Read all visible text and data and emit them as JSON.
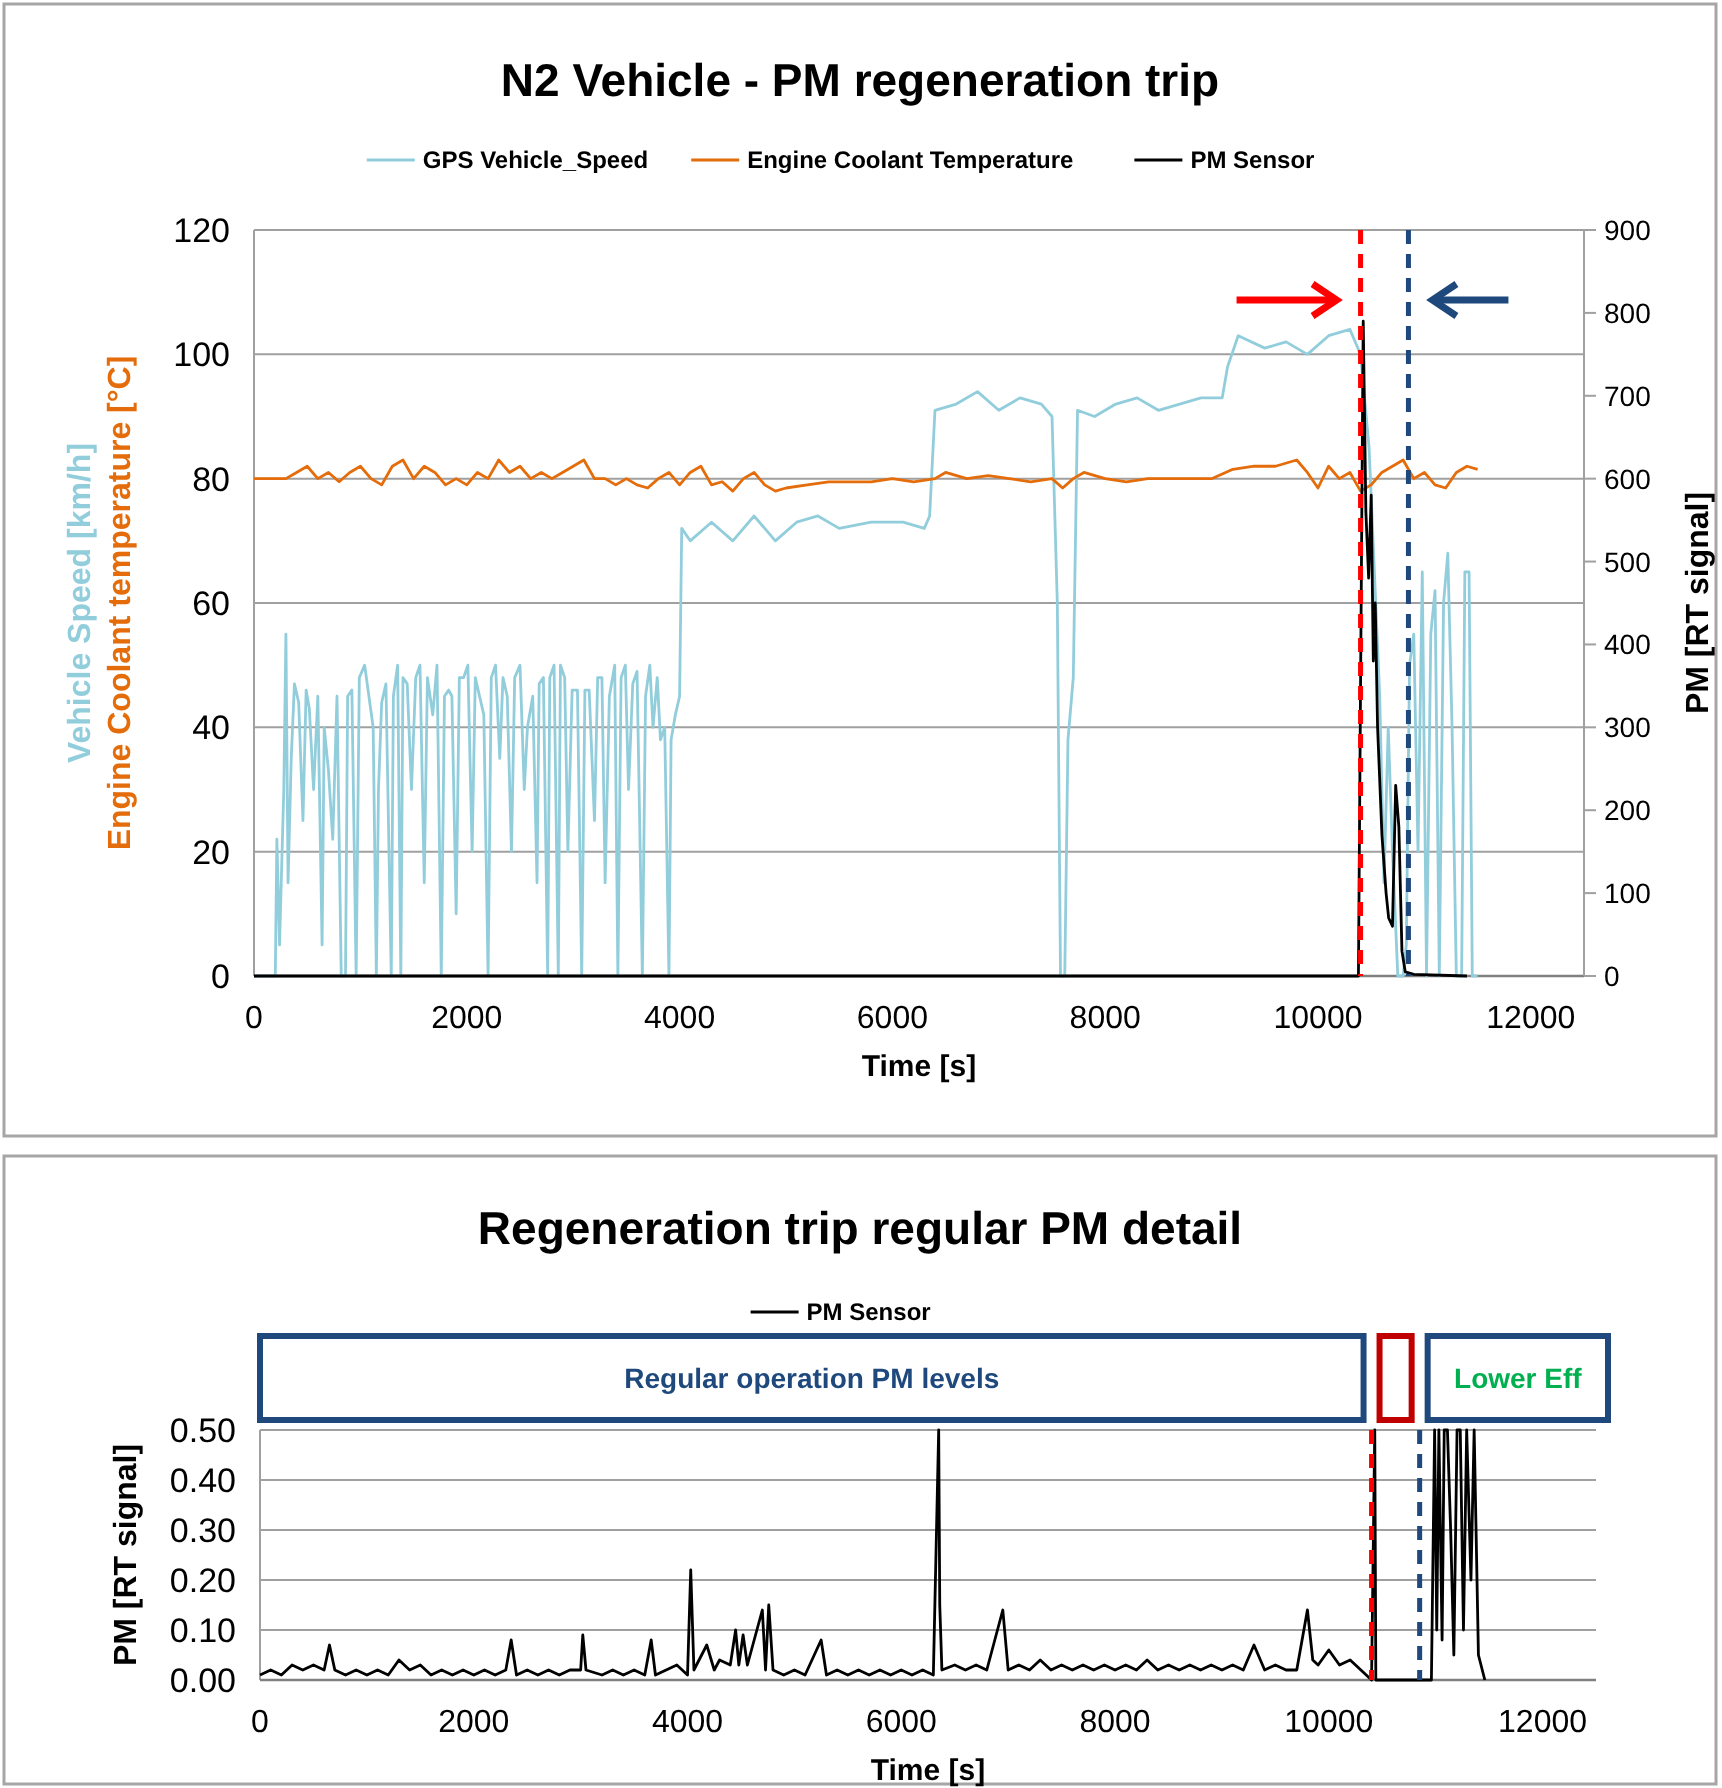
{
  "chart_data": [
    {
      "type": "line",
      "title": "N2 Vehicle - PM regeneration trip",
      "xlabel": "Time [s]",
      "ylabel": "Vehicle Speed [km/h]\nEngine Coolant temperature [°C]",
      "y2label": "PM [RT signal]",
      "xlim": [
        0,
        12500
      ],
      "xticks": [
        0,
        2000,
        4000,
        6000,
        8000,
        10000,
        12000
      ],
      "ylim": [
        0,
        120
      ],
      "yticks": [
        0,
        20,
        40,
        60,
        80,
        100,
        120
      ],
      "y2lim": [
        0,
        900
      ],
      "y2ticks": [
        0,
        100,
        200,
        300,
        400,
        500,
        600,
        700,
        800,
        900
      ],
      "grid": "y",
      "legend": "top",
      "series": [
        {
          "name": "GPS Vehicle_Speed",
          "color": "#92cddc",
          "x": [
            0,
            200,
            215,
            240,
            280,
            300,
            320,
            350,
            380,
            420,
            460,
            490,
            520,
            560,
            600,
            640,
            660,
            700,
            740,
            780,
            820,
            860,
            880,
            920,
            960,
            990,
            1040,
            1080,
            1120,
            1150,
            1170,
            1200,
            1240,
            1290,
            1310,
            1350,
            1380,
            1400,
            1440,
            1480,
            1520,
            1560,
            1600,
            1630,
            1680,
            1720,
            1760,
            1790,
            1830,
            1860,
            1900,
            1930,
            1970,
            2010,
            2050,
            2080,
            2120,
            2160,
            2200,
            2230,
            2270,
            2310,
            2340,
            2380,
            2420,
            2450,
            2500,
            2540,
            2570,
            2620,
            2660,
            2680,
            2720,
            2760,
            2780,
            2820,
            2860,
            2880,
            2920,
            2950,
            2990,
            3040,
            3080,
            3110,
            3150,
            3200,
            3230,
            3270,
            3300,
            3340,
            3390,
            3420,
            3450,
            3490,
            3520,
            3560,
            3600,
            3650,
            3680,
            3720,
            3750,
            3790,
            3820,
            3860,
            3900,
            3920,
            3960,
            4000,
            4020,
            4100,
            4300,
            4500,
            4700,
            4900,
            5100,
            5300,
            5500,
            5800,
            6100,
            6300,
            6350,
            6400,
            6600,
            6800,
            7000,
            7200,
            7400,
            7500,
            7550,
            7580,
            7620,
            7650,
            7700,
            7740,
            7900,
            8100,
            8300,
            8500,
            8700,
            8900,
            9100,
            9150,
            9250,
            9500,
            9700,
            9900,
            10100,
            10300,
            10400,
            10480,
            10530,
            10580,
            10620,
            10660,
            10700,
            10750,
            10800,
            10830,
            10860,
            10900,
            10940,
            10980,
            11020,
            11060,
            11100,
            11140,
            11180,
            11220,
            11260,
            11300,
            11350,
            11380,
            11420,
            11450,
            11500
          ],
          "values": [
            0,
            0,
            22,
            5,
            30,
            55,
            15,
            35,
            47,
            44,
            25,
            46,
            43,
            30,
            45,
            5,
            40,
            33,
            22,
            45,
            0,
            0,
            45,
            46,
            0,
            48,
            50,
            45,
            40,
            0,
            30,
            44,
            47,
            0,
            45,
            50,
            0,
            48,
            47,
            30,
            48,
            50,
            15,
            48,
            42,
            50,
            0,
            45,
            46,
            45,
            10,
            48,
            48,
            50,
            20,
            48,
            45,
            42,
            0,
            48,
            50,
            35,
            48,
            45,
            20,
            48,
            50,
            30,
            40,
            45,
            15,
            47,
            48,
            0,
            48,
            50,
            0,
            50,
            48,
            20,
            46,
            46,
            0,
            46,
            46,
            25,
            48,
            48,
            15,
            45,
            50,
            0,
            48,
            50,
            30,
            47,
            49,
            0,
            45,
            50,
            40,
            48,
            38,
            40,
            0,
            38,
            42,
            45,
            72,
            70,
            73,
            70,
            74,
            70,
            73,
            74,
            72,
            73,
            73,
            72,
            74,
            91,
            92,
            94,
            91,
            93,
            92,
            90,
            60,
            0,
            0,
            38,
            48,
            91,
            90,
            92,
            93,
            91,
            92,
            93,
            93,
            98,
            103,
            101,
            102,
            100,
            103,
            104,
            100,
            85,
            65,
            45,
            15,
            40,
            20,
            0,
            0,
            5,
            50,
            55,
            20,
            65,
            0,
            55,
            62,
            0,
            60,
            68,
            40,
            0,
            0,
            65,
            65,
            0,
            0
          ]
        },
        {
          "name": "Engine Coolant Temperature",
          "color": "#e46c0a",
          "x": [
            0,
            200,
            300,
            400,
            500,
            600,
            700,
            800,
            900,
            1000,
            1100,
            1200,
            1300,
            1400,
            1500,
            1600,
            1700,
            1800,
            1900,
            2000,
            2100,
            2200,
            2300,
            2400,
            2500,
            2600,
            2700,
            2800,
            2900,
            3000,
            3100,
            3200,
            3300,
            3400,
            3500,
            3600,
            3700,
            3800,
            3900,
            4000,
            4100,
            4200,
            4300,
            4400,
            4500,
            4600,
            4700,
            4800,
            4900,
            5000,
            5200,
            5400,
            5600,
            5800,
            6000,
            6200,
            6400,
            6500,
            6700,
            6900,
            7100,
            7300,
            7500,
            7600,
            7700,
            7800,
            8000,
            8200,
            8400,
            8600,
            8800,
            9000,
            9200,
            9400,
            9600,
            9800,
            9900,
            10000,
            10100,
            10200,
            10300,
            10400,
            10500,
            10600,
            10700,
            10800,
            10900,
            11000,
            11100,
            11200,
            11300,
            11400,
            11500
          ],
          "values": [
            80,
            80,
            80,
            81,
            82,
            80,
            81,
            79.5,
            81,
            82,
            80,
            79,
            82,
            83,
            80,
            82,
            81,
            79,
            80,
            79,
            81,
            80,
            83,
            81,
            82,
            80,
            81,
            80,
            81,
            82,
            83,
            80,
            80,
            79,
            80,
            79,
            78.5,
            80,
            81,
            79,
            81,
            82,
            79,
            79.5,
            78,
            80,
            81,
            79,
            78,
            78.5,
            79,
            79.5,
            79.5,
            79.5,
            80,
            79.5,
            80,
            81,
            80,
            80.5,
            80,
            79.5,
            80,
            78.5,
            80,
            81,
            80,
            79.5,
            80,
            80,
            80,
            80,
            81.5,
            82,
            82,
            83,
            81,
            78.5,
            82,
            80,
            81,
            78,
            79,
            81,
            82,
            83,
            80,
            81,
            79,
            78.5,
            81,
            82,
            81.5
          ]
        },
        {
          "name": "PM Sensor",
          "color": "#000000",
          "axis": "y2",
          "x": [
            0,
            10360,
            10380,
            10425,
            10450,
            10476,
            10500,
            10520,
            10538,
            10560,
            10601,
            10640,
            10664,
            10700,
            10730,
            10760,
            10789,
            10820,
            10900,
            11400
          ],
          "values": [
            0,
            0,
            0,
            790,
            560,
            480,
            580,
            380,
            450,
            300,
            170,
            100,
            70,
            60,
            230,
            180,
            30,
            5,
            2,
            0
          ]
        }
      ],
      "ref_lines": [
        {
          "axis": "x",
          "value": 10400,
          "color": "#ff0000",
          "line_style": "dashed"
        },
        {
          "axis": "x",
          "value": 10850,
          "color": "#1f497d",
          "line_style": "dashed"
        }
      ]
    },
    {
      "type": "line",
      "title": "Regeneration trip regular PM detail",
      "xlabel": "Time [s]",
      "ylabel": "PM [RT signal]",
      "xlim": [
        0,
        12500
      ],
      "xticks": [
        0,
        2000,
        4000,
        6000,
        8000,
        10000,
        12000
      ],
      "ylim": [
        0,
        0.5
      ],
      "yticks": [
        {
          "value": 0,
          "label": "0.00"
        },
        {
          "value": 0.1,
          "label": "0.10"
        },
        {
          "value": 0.2,
          "label": "0.20"
        },
        {
          "value": 0.3,
          "label": "0.30"
        },
        {
          "value": 0.4,
          "label": "0.40"
        },
        {
          "value": 0.5,
          "label": "0.50"
        }
      ],
      "grid": "y",
      "legend": "top",
      "series": [
        {
          "name": "PM Sensor",
          "color": "#000000",
          "x": [
            0,
            100,
            200,
            300,
            400,
            500,
            600,
            650,
            700,
            800,
            900,
            1000,
            1100,
            1200,
            1300,
            1400,
            1500,
            1600,
            1700,
            1800,
            1900,
            2000,
            2100,
            2200,
            2300,
            2350,
            2400,
            2500,
            2600,
            2700,
            2800,
            2900,
            3000,
            3020,
            3050,
            3200,
            3300,
            3400,
            3500,
            3600,
            3660,
            3700,
            3800,
            3900,
            4000,
            4030,
            4060,
            4180,
            4250,
            4300,
            4400,
            4450,
            4480,
            4520,
            4560,
            4700,
            4730,
            4760,
            4800,
            4900,
            5000,
            5100,
            5250,
            5300,
            5400,
            5500,
            5600,
            5700,
            5800,
            5900,
            6000,
            6100,
            6200,
            6300,
            6350,
            6360,
            6380,
            6500,
            6600,
            6700,
            6800,
            6950,
            7000,
            7100,
            7200,
            7300,
            7400,
            7500,
            7600,
            7700,
            7800,
            7900,
            8000,
            8100,
            8200,
            8300,
            8400,
            8500,
            8600,
            8700,
            8800,
            8900,
            9000,
            9100,
            9200,
            9300,
            9400,
            9500,
            9600,
            9700,
            9800,
            9850,
            9900,
            10000,
            10100,
            10200,
            10300,
            10400,
            10430,
            10440,
            10960,
            10990,
            11010,
            11030,
            11060,
            11080,
            11110,
            11140,
            11170,
            11200,
            11230,
            11260,
            11290,
            11330,
            11360,
            11400,
            11460
          ],
          "values": [
            0.01,
            0.02,
            0.01,
            0.03,
            0.02,
            0.03,
            0.02,
            0.07,
            0.02,
            0.01,
            0.02,
            0.01,
            0.02,
            0.01,
            0.04,
            0.02,
            0.03,
            0.01,
            0.02,
            0.01,
            0.02,
            0.01,
            0.02,
            0.01,
            0.02,
            0.08,
            0.01,
            0.02,
            0.01,
            0.02,
            0.01,
            0.02,
            0.02,
            0.09,
            0.02,
            0.01,
            0.02,
            0.01,
            0.02,
            0.01,
            0.08,
            0.01,
            0.02,
            0.03,
            0.01,
            0.22,
            0.02,
            0.07,
            0.02,
            0.04,
            0.03,
            0.1,
            0.03,
            0.09,
            0.03,
            0.14,
            0.02,
            0.15,
            0.02,
            0.01,
            0.02,
            0.01,
            0.08,
            0.01,
            0.02,
            0.01,
            0.02,
            0.01,
            0.02,
            0.01,
            0.02,
            0.01,
            0.02,
            0.01,
            0.5,
            0.15,
            0.02,
            0.03,
            0.02,
            0.03,
            0.02,
            0.14,
            0.02,
            0.03,
            0.02,
            0.04,
            0.02,
            0.03,
            0.02,
            0.03,
            0.02,
            0.03,
            0.02,
            0.03,
            0.02,
            0.04,
            0.02,
            0.03,
            0.02,
            0.03,
            0.02,
            0.03,
            0.02,
            0.03,
            0.02,
            0.07,
            0.02,
            0.03,
            0.02,
            0.02,
            0.14,
            0.04,
            0.03,
            0.06,
            0.03,
            0.04,
            0.02,
            0,
            0.5,
            0,
            0,
            0.5,
            0.1,
            0.5,
            0.08,
            0.5,
            0.5,
            0.3,
            0.05,
            0.5,
            0.5,
            0.1,
            0.5,
            0.2,
            0.5,
            0.05,
            0
          ]
        }
      ],
      "ref_lines": [
        {
          "axis": "x",
          "value": 10400,
          "color": "#ff0000",
          "line_style": "dashed"
        },
        {
          "axis": "x",
          "value": 10850,
          "color": "#1f497d",
          "line_style": "dashed"
        }
      ],
      "annotations": [
        "Regular operation PM levels",
        "Lower Eff"
      ]
    }
  ]
}
